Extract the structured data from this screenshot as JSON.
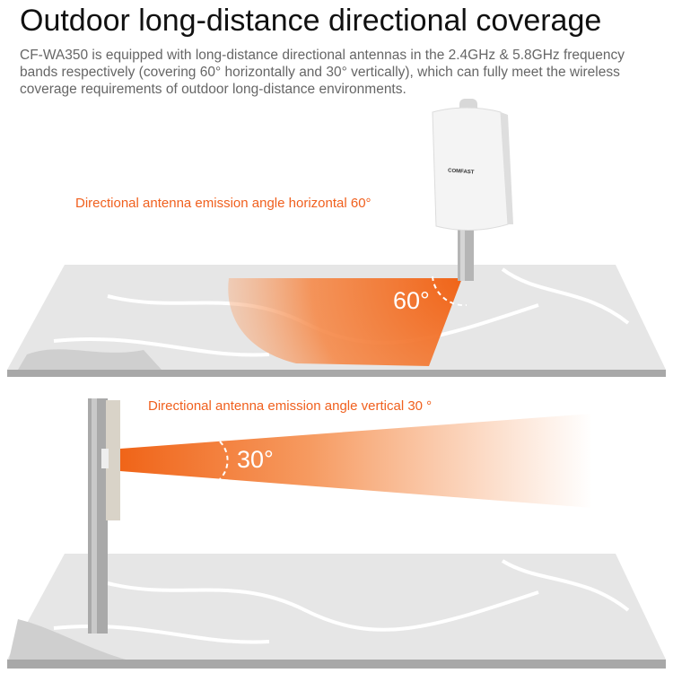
{
  "title": "Outdoor long-distance directional coverage",
  "description": "CF-WA350 is equipped with long-distance directional antennas in the 2.4GHz & 5.8GHz frequency bands respectively (covering 60° horizontally and 30° vertically), which can fully meet the wireless coverage requirements of outdoor long-distance environments.",
  "horizontal": {
    "label": "Directional antenna emission angle horizontal 60°",
    "angle_text": "60°"
  },
  "vertical": {
    "label": "Directional antenna emission angle vertical 30 °",
    "angle_text": "30°"
  },
  "device_logo": "COMFAST",
  "colors": {
    "accent": "#f0601e",
    "map": "#e6e6e6",
    "map_edge": "#a8a8a8"
  }
}
